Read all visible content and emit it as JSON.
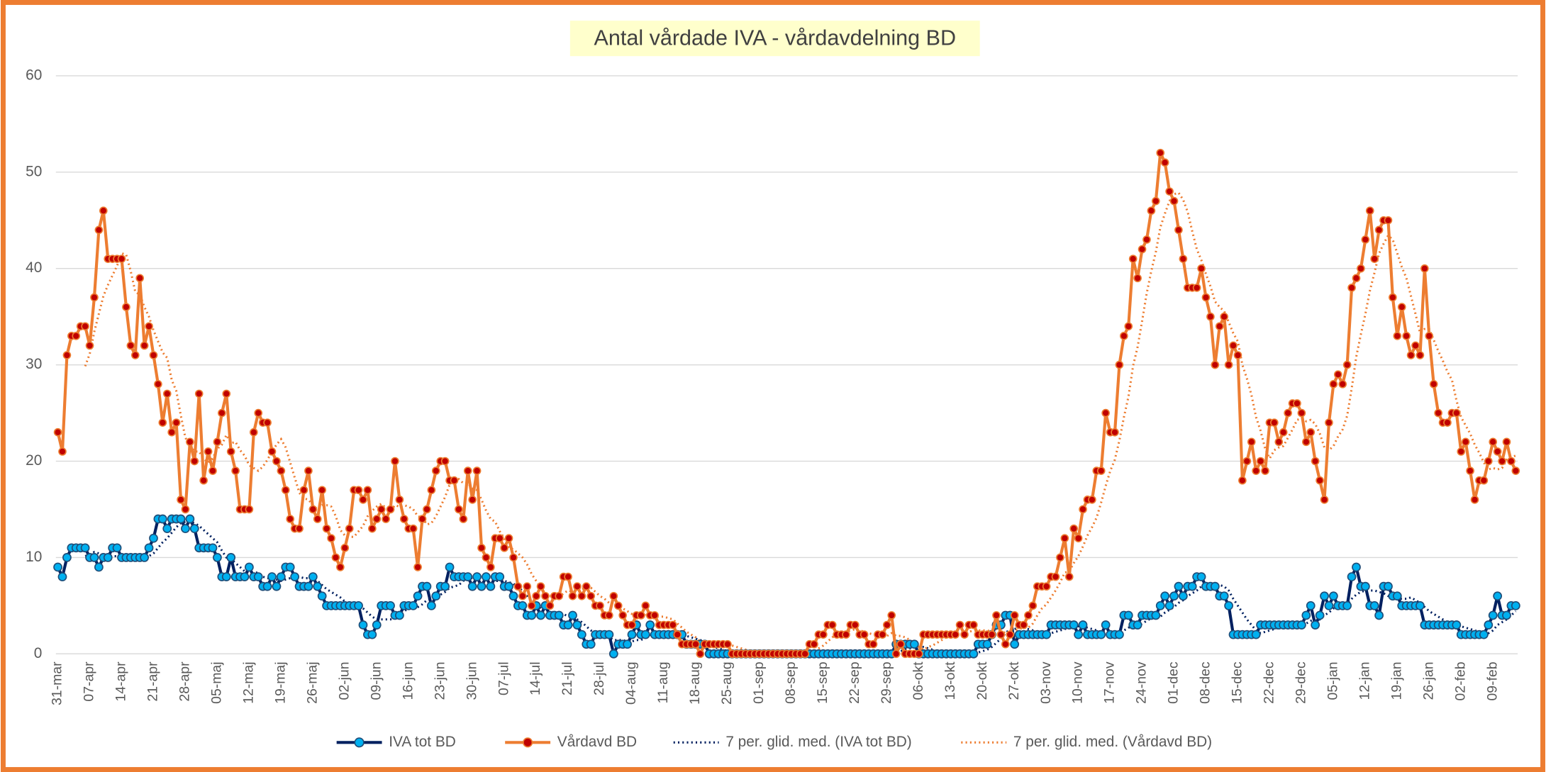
{
  "chart_data": {
    "type": "line",
    "title": "Antal vårdade IVA - vårdavdelning BD",
    "categories": [
      "31-mar",
      null,
      null,
      null,
      null,
      null,
      null,
      "07-apr",
      null,
      null,
      null,
      null,
      null,
      null,
      "14-apr",
      null,
      null,
      null,
      null,
      null,
      null,
      "21-apr",
      null,
      null,
      null,
      null,
      null,
      null,
      "28-apr",
      null,
      null,
      null,
      null,
      null,
      null,
      "05-maj",
      null,
      null,
      null,
      null,
      null,
      null,
      "12-maj",
      null,
      null,
      null,
      null,
      null,
      null,
      "19-maj",
      null,
      null,
      null,
      null,
      null,
      null,
      "26-maj",
      null,
      null,
      null,
      null,
      null,
      null,
      "02-jun",
      null,
      null,
      null,
      null,
      null,
      null,
      "09-jun",
      null,
      null,
      null,
      null,
      null,
      null,
      "16-jun",
      null,
      null,
      null,
      null,
      null,
      null,
      "23-jun",
      null,
      null,
      null,
      null,
      null,
      null,
      "30-jun",
      null,
      null,
      null,
      null,
      null,
      null,
      "07-jul",
      null,
      null,
      null,
      null,
      null,
      null,
      "14-jul",
      null,
      null,
      null,
      null,
      null,
      null,
      "21-jul",
      null,
      null,
      null,
      null,
      null,
      null,
      "28-jul",
      null,
      null,
      null,
      null,
      null,
      null,
      "04-aug",
      null,
      null,
      null,
      null,
      null,
      null,
      "11-aug",
      null,
      null,
      null,
      null,
      null,
      null,
      "18-aug",
      null,
      null,
      null,
      null,
      null,
      null,
      "25-aug",
      null,
      null,
      null,
      null,
      null,
      null,
      "01-sep",
      null,
      null,
      null,
      null,
      null,
      null,
      "08-sep",
      null,
      null,
      null,
      null,
      null,
      null,
      "15-sep",
      null,
      null,
      null,
      null,
      null,
      null,
      "22-sep",
      null,
      null,
      null,
      null,
      null,
      null,
      "29-sep",
      null,
      null,
      null,
      null,
      null,
      null,
      "06-okt",
      null,
      null,
      null,
      null,
      null,
      null,
      "13-okt",
      null,
      null,
      null,
      null,
      null,
      null,
      "20-okt",
      null,
      null,
      null,
      null,
      null,
      null,
      "27-okt",
      null,
      null,
      null,
      null,
      null,
      null,
      "03-nov",
      null,
      null,
      null,
      null,
      null,
      null,
      "10-nov",
      null,
      null,
      null,
      null,
      null,
      null,
      "17-nov",
      null,
      null,
      null,
      null,
      null,
      null,
      "24-nov",
      null,
      null,
      null,
      null,
      null,
      null,
      "01-dec",
      null,
      null,
      null,
      null,
      null,
      null,
      "08-dec",
      null,
      null,
      null,
      null,
      null,
      null,
      "15-dec",
      null,
      null,
      null,
      null,
      null,
      null,
      "22-dec",
      null,
      null,
      null,
      null,
      null,
      null,
      "29-dec",
      null,
      null,
      null,
      null,
      null,
      null,
      "05-jan",
      null,
      null,
      null,
      null,
      null,
      null,
      "12-jan",
      null,
      null,
      null,
      null,
      null,
      null,
      "19-jan",
      null,
      null,
      null,
      null,
      null,
      null,
      "26-jan",
      null,
      null,
      null,
      null,
      null,
      null,
      "02-feb",
      null,
      null,
      null,
      null,
      null,
      null,
      "09-feb",
      null,
      null,
      null,
      null,
      null
    ],
    "series": [
      {
        "name": "IVA tot BD",
        "color": "#002060",
        "marker_color": "#00b0f0",
        "values": [
          9,
          8,
          10,
          11,
          11,
          11,
          11,
          10,
          10,
          9,
          10,
          10,
          11,
          11,
          10,
          10,
          10,
          10,
          10,
          10,
          11,
          12,
          14,
          14,
          13,
          14,
          14,
          14,
          13,
          14,
          13,
          11,
          11,
          11,
          11,
          10,
          8,
          8,
          10,
          8,
          8,
          8,
          9,
          8,
          8,
          7,
          7,
          8,
          7,
          8,
          9,
          9,
          8,
          7,
          7,
          7,
          8,
          7,
          6,
          5,
          5,
          5,
          5,
          5,
          5,
          5,
          5,
          3,
          2,
          2,
          3,
          5,
          5,
          5,
          4,
          4,
          5,
          5,
          5,
          6,
          7,
          7,
          5,
          6,
          7,
          7,
          9,
          8,
          8,
          8,
          8,
          7,
          8,
          7,
          8,
          7,
          8,
          8,
          7,
          7,
          6,
          5,
          5,
          4,
          4,
          5,
          4,
          5,
          4,
          4,
          4,
          3,
          3,
          4,
          3,
          2,
          1,
          1,
          2,
          2,
          2,
          2,
          0,
          1,
          1,
          1,
          2,
          3,
          2,
          2,
          3,
          2,
          2,
          2,
          2,
          2,
          2,
          2,
          1,
          1,
          1,
          1,
          1,
          0,
          0,
          0,
          0,
          0,
          0,
          0,
          0,
          0,
          0,
          0,
          0,
          0,
          0,
          0,
          0,
          0,
          0,
          0,
          0,
          0,
          0,
          0,
          0,
          0,
          0,
          0,
          0,
          0,
          0,
          0,
          0,
          0,
          0,
          0,
          0,
          0,
          0,
          0,
          0,
          0,
          1,
          1,
          1,
          1,
          1,
          0,
          0,
          0,
          0,
          0,
          0,
          0,
          0,
          0,
          0,
          0,
          0,
          0,
          1,
          1,
          1,
          2,
          3,
          3,
          4,
          4,
          1,
          2,
          2,
          2,
          2,
          2,
          2,
          2,
          3,
          3,
          3,
          3,
          3,
          3,
          2,
          3,
          2,
          2,
          2,
          2,
          3,
          2,
          2,
          2,
          4,
          4,
          3,
          3,
          4,
          4,
          4,
          4,
          5,
          6,
          5,
          6,
          7,
          6,
          7,
          7,
          8,
          8,
          7,
          7,
          7,
          6,
          6,
          5,
          2,
          2,
          2,
          2,
          2,
          2,
          3,
          3,
          3,
          3,
          3,
          3,
          3,
          3,
          3,
          3,
          4,
          5,
          3,
          4,
          6,
          5,
          6,
          5,
          5,
          5,
          8,
          9,
          7,
          7,
          5,
          5,
          4,
          7,
          7,
          6,
          6,
          5,
          5,
          5,
          5,
          5,
          3,
          3,
          3,
          3,
          3,
          3,
          3,
          3,
          2,
          2,
          2,
          2,
          2,
          2,
          3,
          4,
          6,
          4,
          4,
          5,
          5
        ]
      },
      {
        "name": "Vårdavd BD",
        "color": "#ed7d31",
        "marker_color": "#c00000",
        "values": [
          23,
          21,
          31,
          33,
          33,
          34,
          34,
          32,
          37,
          44,
          46,
          41,
          41,
          41,
          41,
          36,
          32,
          31,
          39,
          32,
          34,
          31,
          28,
          24,
          27,
          23,
          24,
          16,
          15,
          22,
          20,
          27,
          18,
          21,
          19,
          22,
          25,
          27,
          21,
          19,
          15,
          15,
          15,
          23,
          25,
          24,
          24,
          21,
          20,
          19,
          17,
          14,
          13,
          13,
          17,
          19,
          15,
          14,
          17,
          13,
          12,
          10,
          9,
          11,
          13,
          17,
          17,
          16,
          17,
          13,
          14,
          15,
          14,
          15,
          20,
          16,
          14,
          13,
          13,
          9,
          14,
          15,
          17,
          19,
          20,
          20,
          18,
          18,
          15,
          14,
          19,
          16,
          19,
          11,
          10,
          9,
          12,
          12,
          11,
          12,
          10,
          7,
          6,
          7,
          5,
          6,
          7,
          6,
          5,
          6,
          6,
          8,
          8,
          6,
          7,
          6,
          7,
          6,
          5,
          5,
          4,
          4,
          6,
          5,
          4,
          3,
          3,
          4,
          4,
          5,
          4,
          4,
          3,
          3,
          3,
          3,
          2,
          1,
          1,
          1,
          1,
          0,
          1,
          1,
          1,
          1,
          1,
          1,
          0,
          0,
          0,
          0,
          0,
          0,
          0,
          0,
          0,
          0,
          0,
          0,
          0,
          0,
          0,
          0,
          0,
          1,
          1,
          2,
          2,
          3,
          3,
          2,
          2,
          2,
          3,
          3,
          2,
          2,
          1,
          1,
          2,
          2,
          3,
          4,
          0,
          1,
          0,
          0,
          0,
          0,
          2,
          2,
          2,
          2,
          2,
          2,
          2,
          2,
          3,
          2,
          3,
          3,
          2,
          2,
          2,
          2,
          4,
          2,
          1,
          2,
          4,
          3,
          3,
          4,
          5,
          7,
          7,
          7,
          8,
          8,
          10,
          12,
          8,
          13,
          12,
          15,
          16,
          16,
          19,
          19,
          25,
          23,
          23,
          30,
          33,
          34,
          41,
          39,
          42,
          43,
          46,
          47,
          52,
          51,
          48,
          47,
          44,
          41,
          38,
          38,
          38,
          40,
          37,
          35,
          30,
          34,
          35,
          30,
          32,
          31,
          18,
          20,
          22,
          19,
          20,
          19,
          24,
          24,
          22,
          23,
          25,
          26,
          26,
          25,
          22,
          23,
          20,
          18,
          16,
          24,
          28,
          29,
          28,
          30,
          38,
          39,
          40,
          43,
          46,
          41,
          44,
          45,
          45,
          37,
          33,
          36,
          33,
          31,
          32,
          31,
          40,
          33,
          28,
          25,
          24,
          24,
          25,
          25,
          21,
          22,
          19,
          16,
          18,
          18,
          20,
          22,
          21,
          20,
          22,
          20,
          19
        ]
      }
    ],
    "trendlines": [
      {
        "name": "7 per. glid. med. (IVA tot BD)",
        "series": 0,
        "period": 7,
        "color": "#002060"
      },
      {
        "name": "7 per. glid. med. (Vårdavd BD)",
        "series": 1,
        "period": 7,
        "color": "#ed7d31"
      }
    ],
    "ylim": [
      0,
      60
    ],
    "yticks": [
      0,
      10,
      20,
      30,
      40,
      50,
      60
    ],
    "grid": true,
    "legend": "bottom"
  }
}
